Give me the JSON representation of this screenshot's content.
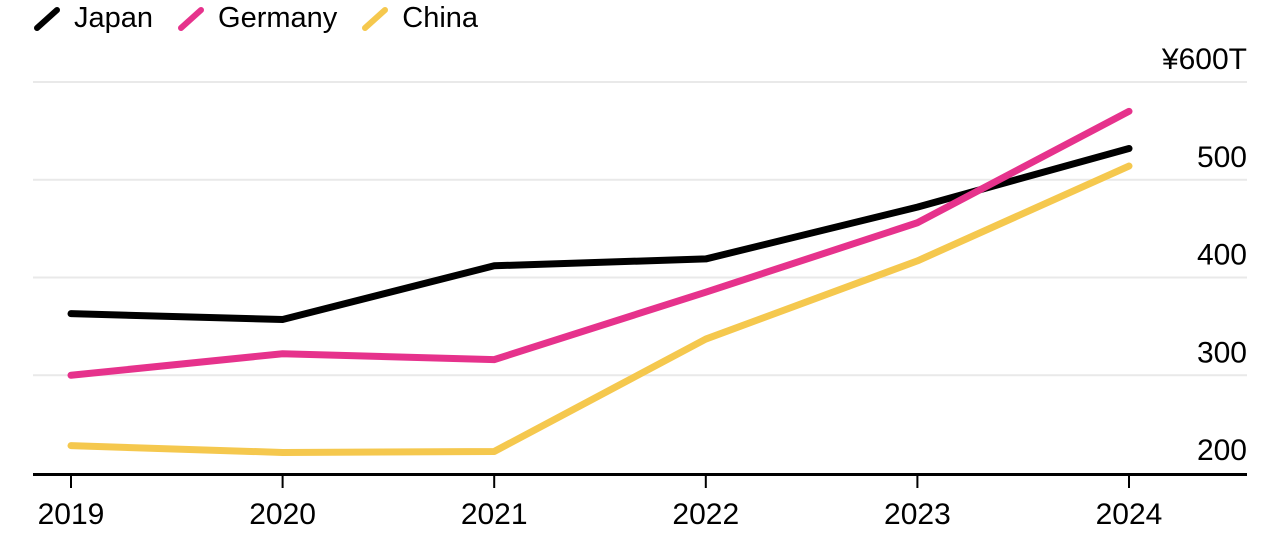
{
  "chart_data": {
    "type": "line",
    "x": [
      2019,
      2020,
      2021,
      2022,
      2023,
      2024
    ],
    "xtick_labels": [
      "2019",
      "2020",
      "2021",
      "2022",
      "2023",
      "2024"
    ],
    "series": [
      {
        "name": "Japan",
        "color": "#000000",
        "values": [
          363,
          357,
          412,
          419,
          472,
          532
        ]
      },
      {
        "name": "Germany",
        "color": "#E6328C",
        "values": [
          300,
          322,
          316,
          385,
          456,
          570
        ]
      },
      {
        "name": "China",
        "color": "#F5C84E",
        "values": [
          228,
          221,
          222,
          337,
          417,
          514
        ]
      }
    ],
    "ylim": [
      200,
      600
    ],
    "yticks": [
      200,
      300,
      400,
      500,
      600
    ],
    "ytick_labels": [
      "200",
      "300",
      "400",
      "500",
      "¥600T"
    ],
    "y_unit_label": "¥600T",
    "title": "",
    "xlabel": "",
    "ylabel": "",
    "grid": "horizontal",
    "legend_position": "top-left"
  },
  "legend": {
    "items": [
      {
        "label": "Japan",
        "color": "#000000"
      },
      {
        "label": "Germany",
        "color": "#E6328C"
      },
      {
        "label": "China",
        "color": "#F5C84E"
      }
    ]
  },
  "colors": {
    "background": "#FFFFFF",
    "grid": "#E9E9E9",
    "axis": "#000000",
    "text": "#000000"
  }
}
